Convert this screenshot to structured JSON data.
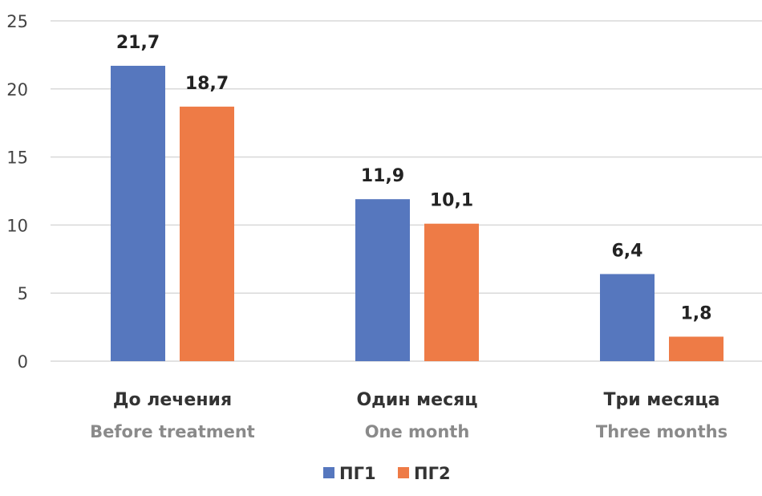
{
  "chart_data": {
    "type": "bar",
    "title": "",
    "categories": [
      "До лечения",
      "Один месяц",
      "Три месяца"
    ],
    "category_subtitles": [
      "Before treatment",
      "One month",
      "Three months"
    ],
    "series": [
      {
        "name": "ПГ1",
        "values": [
          21.7,
          11.9,
          6.4
        ],
        "labels": [
          "21,7",
          "11,9",
          "6,4"
        ],
        "color": "#5677BE"
      },
      {
        "name": "ПГ2",
        "values": [
          18.7,
          10.1,
          1.8
        ],
        "labels": [
          "18,7",
          "10,1",
          "1,8"
        ],
        "color": "#EE7B46"
      }
    ],
    "ylim": [
      0,
      25
    ],
    "yticks": [
      "0",
      "5",
      "10",
      "15",
      "20",
      "25"
    ],
    "grid": true,
    "legend": "bottom",
    "xlabel": "",
    "ylabel": ""
  }
}
